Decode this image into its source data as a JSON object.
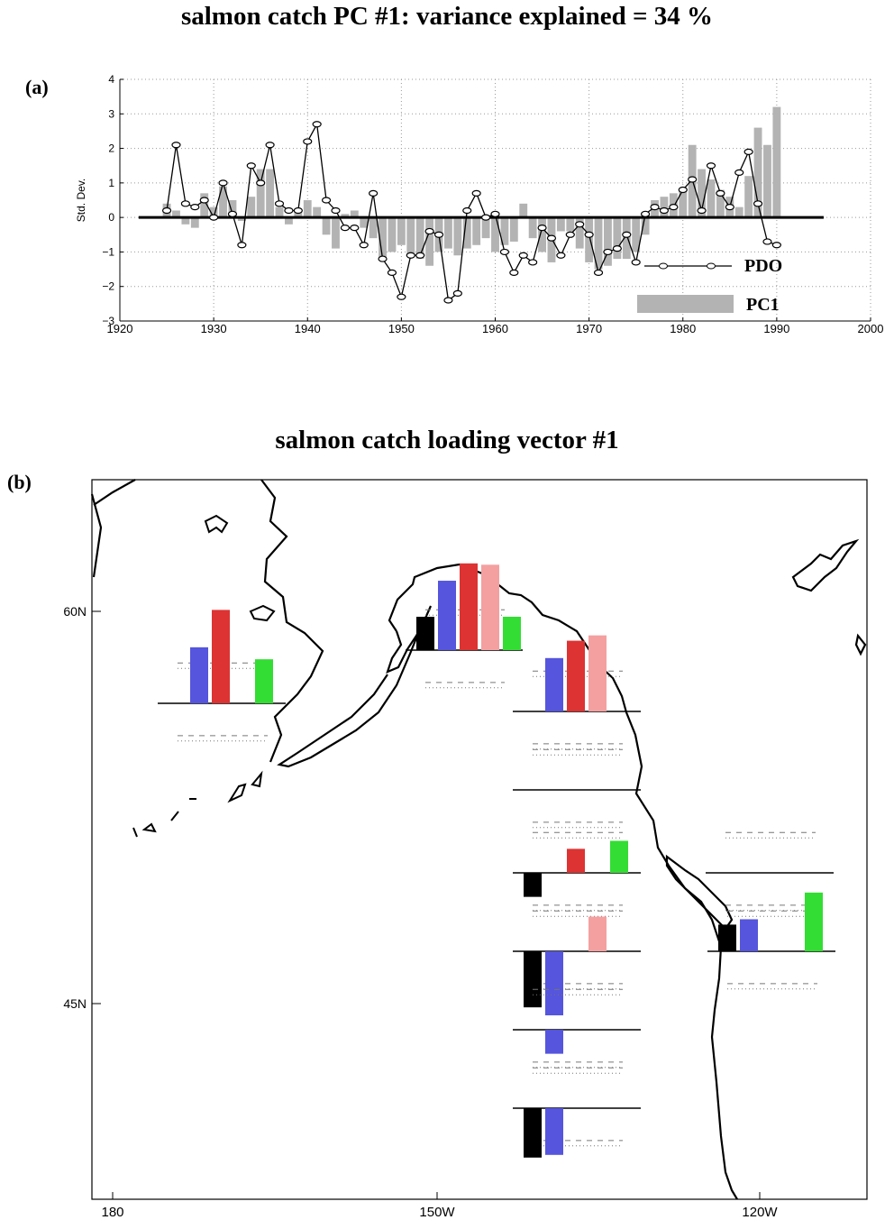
{
  "panel_a": {
    "title": "salmon catch PC #1:   variance explained = 34 %",
    "label": "(a)"
  },
  "panel_b": {
    "title": "salmon catch loading vector #1",
    "label": "(b)"
  },
  "chart_data": [
    {
      "type": "bar",
      "title": "salmon catch PC #1:   variance explained = 34 %",
      "ylabel": "Std. Dev.",
      "xlabel": "",
      "xlim": [
        1920,
        2000
      ],
      "ylim": [
        -3,
        4
      ],
      "xticks": [
        1920,
        1930,
        1940,
        1950,
        1960,
        1970,
        1980,
        1990,
        2000
      ],
      "yticks": [
        -3,
        -2,
        -1,
        0,
        1,
        2,
        3,
        4
      ],
      "grid": true,
      "legend": "bottom-right",
      "series": [
        {
          "name": "PC1",
          "style": "bars",
          "color": "#b3b3b3",
          "x": [
            1925,
            1926,
            1927,
            1928,
            1929,
            1930,
            1931,
            1932,
            1933,
            1934,
            1935,
            1936,
            1937,
            1938,
            1939,
            1940,
            1941,
            1942,
            1943,
            1944,
            1945,
            1946,
            1947,
            1948,
            1949,
            1950,
            1951,
            1952,
            1953,
            1954,
            1955,
            1956,
            1957,
            1958,
            1959,
            1960,
            1961,
            1962,
            1963,
            1964,
            1965,
            1966,
            1967,
            1968,
            1969,
            1970,
            1971,
            1972,
            1973,
            1974,
            1975,
            1976,
            1977,
            1978,
            1979,
            1980,
            1981,
            1982,
            1983,
            1984,
            1985,
            1986,
            1987,
            1988,
            1989,
            1990
          ],
          "values": [
            0.4,
            0.2,
            -0.2,
            -0.3,
            0.7,
            0.3,
            0.9,
            0.5,
            -0.1,
            0.6,
            1.4,
            1.4,
            0.3,
            -0.2,
            0.2,
            0.5,
            0.3,
            -0.5,
            -0.9,
            0.1,
            0.2,
            -0.3,
            -0.6,
            -1.2,
            -1.0,
            -0.8,
            -1.1,
            -1.2,
            -1.4,
            -1.0,
            -0.9,
            -1.1,
            -0.9,
            -0.8,
            -0.6,
            -1.0,
            -0.8,
            -0.7,
            0.4,
            -0.6,
            -1.0,
            -1.3,
            -0.4,
            -0.4,
            -0.9,
            -1.3,
            -1.5,
            -1.4,
            -1.2,
            -1.2,
            -1.0,
            -0.5,
            0.5,
            0.6,
            0.7,
            0.8,
            2.1,
            1.4,
            1.1,
            0.8,
            0.6,
            0.3,
            1.2,
            2.6,
            2.1,
            3.2
          ]
        },
        {
          "name": "PDO",
          "style": "line-circle",
          "color": "#000000",
          "x": [
            1925,
            1926,
            1927,
            1928,
            1929,
            1930,
            1931,
            1932,
            1933,
            1934,
            1935,
            1936,
            1937,
            1938,
            1939,
            1940,
            1941,
            1942,
            1943,
            1944,
            1945,
            1946,
            1947,
            1948,
            1949,
            1950,
            1951,
            1952,
            1953,
            1954,
            1955,
            1956,
            1957,
            1958,
            1959,
            1960,
            1961,
            1962,
            1963,
            1964,
            1965,
            1966,
            1967,
            1968,
            1969,
            1970,
            1971,
            1972,
            1973,
            1974,
            1975,
            1976,
            1977,
            1978,
            1979,
            1980,
            1981,
            1982,
            1983,
            1984,
            1985,
            1986,
            1987,
            1988,
            1989,
            1990
          ],
          "values": [
            0.2,
            2.1,
            0.4,
            0.3,
            0.5,
            0.0,
            1.0,
            0.1,
            -0.8,
            1.5,
            1.0,
            2.1,
            0.4,
            0.2,
            0.2,
            2.2,
            2.7,
            0.5,
            0.2,
            -0.3,
            -0.3,
            -0.8,
            0.7,
            -1.2,
            -1.6,
            -2.3,
            -1.1,
            -1.1,
            -0.4,
            -0.5,
            -2.4,
            -2.2,
            0.2,
            0.7,
            0.0,
            0.1,
            -1.0,
            -1.6,
            -1.1,
            -1.3,
            -0.3,
            -0.6,
            -1.1,
            -0.5,
            -0.2,
            -0.5,
            -1.6,
            -1.0,
            -0.9,
            -0.5,
            -1.3,
            0.1,
            0.3,
            0.2,
            0.3,
            0.8,
            1.1,
            0.2,
            1.5,
            0.7,
            0.3,
            1.3,
            1.9,
            0.4,
            -0.7,
            -0.8
          ]
        }
      ]
    },
    {
      "type": "bar",
      "title": "salmon catch loading vector #1",
      "map_axes": {
        "x_ticks": [
          "180",
          "150W",
          "120W"
        ],
        "y_ticks": [
          "60N",
          "45N"
        ]
      },
      "series": [
        {
          "name": "black",
          "color": "#000000"
        },
        {
          "name": "blue",
          "color": "#5555dd"
        },
        {
          "name": "red",
          "color": "#dd3333"
        },
        {
          "name": "pink",
          "color": "#f4a0a0"
        },
        {
          "name": "green",
          "color": "#33dd33"
        }
      ],
      "regions": [
        {
          "values": [
            null,
            0.42,
            0.7,
            null,
            0.33
          ]
        },
        {
          "values": [
            0.25,
            0.52,
            0.65,
            0.64,
            0.25
          ]
        },
        {
          "values": [
            null,
            0.4,
            0.53,
            0.57,
            null
          ]
        },
        {
          "values": [
            null,
            null,
            null,
            null,
            null
          ]
        },
        {
          "values": [
            -0.18,
            null,
            0.18,
            null,
            0.24
          ]
        },
        {
          "values": [
            null,
            null,
            null,
            null,
            null
          ]
        },
        {
          "values": [
            -0.42,
            -0.48,
            null,
            0.26,
            null
          ]
        },
        {
          "values": [
            null,
            -0.18,
            null,
            null,
            null
          ]
        },
        {
          "values": [
            -0.37,
            -0.35,
            null,
            null,
            null
          ]
        },
        {
          "values": [
            0.2,
            0.24,
            null,
            null,
            0.44
          ]
        }
      ]
    }
  ]
}
